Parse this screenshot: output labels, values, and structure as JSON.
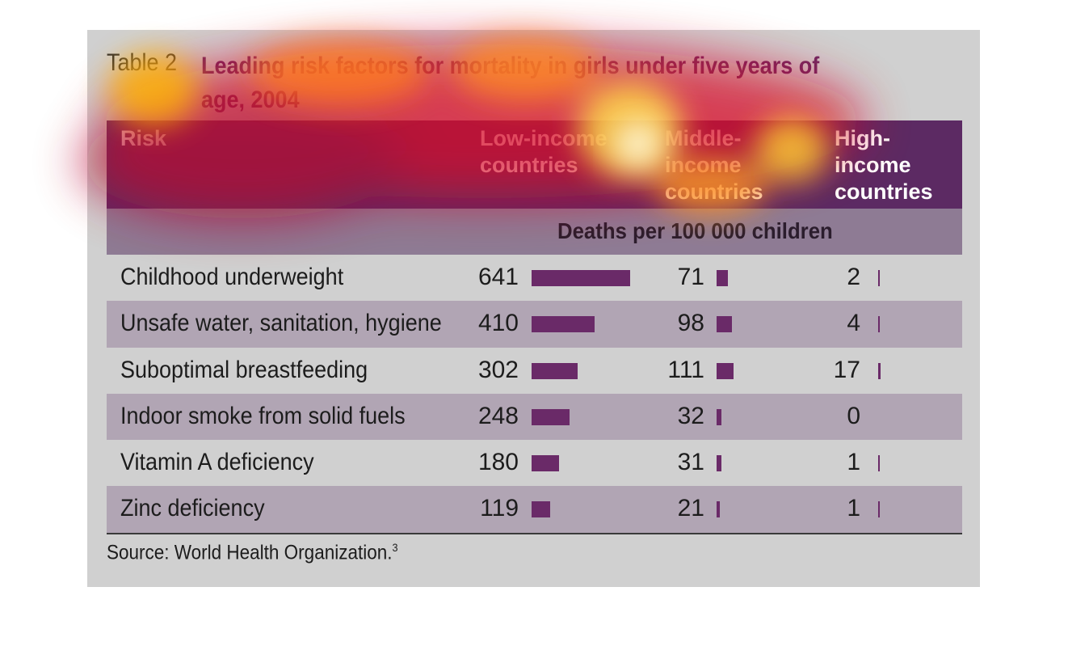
{
  "title": {
    "label": "Table 2",
    "text": "Leading risk factors for mortality in girls under five years of age, 2004"
  },
  "chart_data": {
    "type": "table",
    "columns": [
      "Risk",
      "Low-income countries",
      "Middle-income countries",
      "High-income countries"
    ],
    "units": "Deaths per 100 000 children",
    "rows": [
      {
        "risk": "Childhood underweight",
        "low": "641",
        "middle": "71",
        "high": "2"
      },
      {
        "risk": "Unsafe water, sanitation, hygiene",
        "low": "410",
        "middle": "98",
        "high": "4"
      },
      {
        "risk": "Suboptimal breastfeeding",
        "low": "302",
        "middle": "111",
        "high": "17"
      },
      {
        "risk": "Indoor smoke from solid fuels",
        "low": "248",
        "middle": "32",
        "high": "0"
      },
      {
        "risk": "Vitamin A deficiency",
        "low": "180",
        "middle": "31",
        "high": "1"
      },
      {
        "risk": "Zinc deficiency",
        "low": "119",
        "middle": "21",
        "high": "1"
      }
    ],
    "bar_color": "#6a2a68"
  },
  "headers": {
    "risk": "Risk",
    "low": "Low-income\ncountries",
    "middle": "Middle-\nincome\ncountries",
    "high": "High-\nincome\ncountries"
  },
  "source": {
    "text": "Source: World Health Organization.",
    "ref": "3"
  }
}
